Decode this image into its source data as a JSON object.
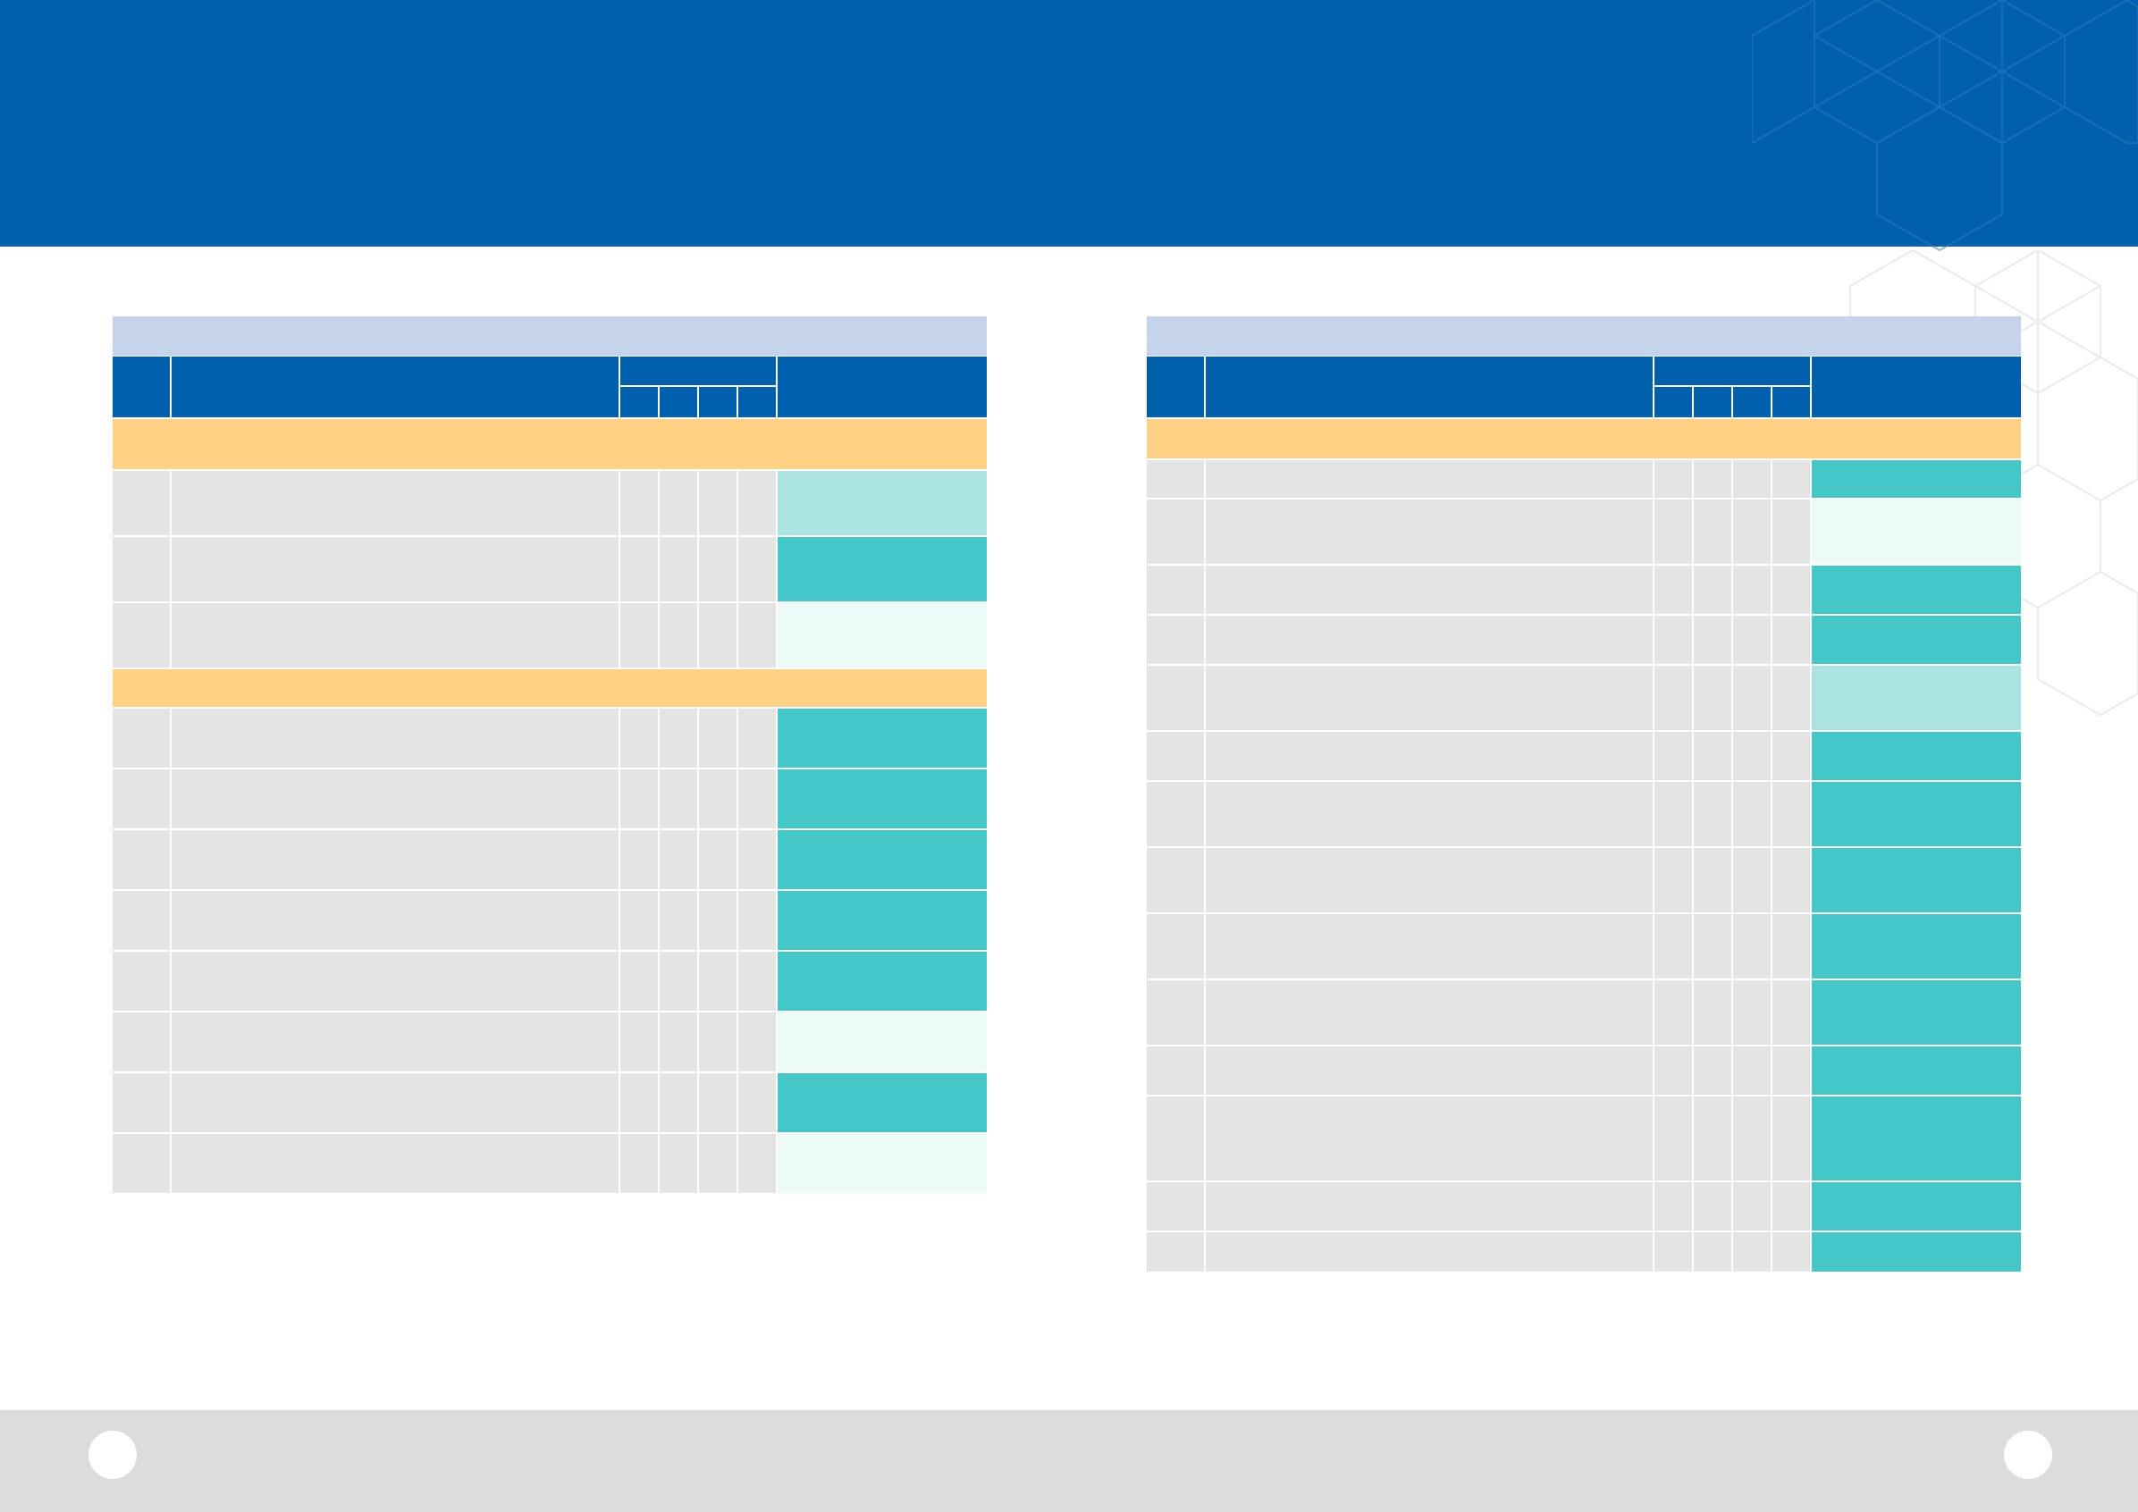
{
  "header": {
    "title": ""
  },
  "footer": {
    "page_left": "",
    "page_right": ""
  },
  "colors": {
    "header_bg": "#0060ae",
    "panel_title_bg": "#c5d4ea",
    "section_bg": "#ffd184",
    "row_bg": "#e4e4e4",
    "status_high": "#45c6c7",
    "status_medium": "#abe3e1",
    "status_low": "#ecfbf8",
    "footer_bg": "#dcdcdc"
  },
  "left_table": {
    "title": "",
    "columns": {
      "no": "",
      "name": "",
      "group": "",
      "sub": [
        "",
        "",
        "",
        ""
      ],
      "status": ""
    },
    "sections": [
      {
        "label": "",
        "rows": [
          {
            "no": "",
            "name": "",
            "c": [
              "",
              "",
              "",
              ""
            ],
            "status": "",
            "level": "medium"
          },
          {
            "no": "",
            "name": "",
            "c": [
              "",
              "",
              "",
              ""
            ],
            "status": "",
            "level": "high"
          },
          {
            "no": "",
            "name": "",
            "c": [
              "",
              "",
              "",
              ""
            ],
            "status": "",
            "level": "low"
          }
        ]
      },
      {
        "label": "",
        "rows": [
          {
            "no": "",
            "name": "",
            "c": [
              "",
              "",
              "",
              ""
            ],
            "status": "",
            "level": "high"
          },
          {
            "no": "",
            "name": "",
            "c": [
              "",
              "",
              "",
              ""
            ],
            "status": "",
            "level": "high"
          },
          {
            "no": "",
            "name": "",
            "c": [
              "",
              "",
              "",
              ""
            ],
            "status": "",
            "level": "high"
          },
          {
            "no": "",
            "name": "",
            "c": [
              "",
              "",
              "",
              ""
            ],
            "status": "",
            "level": "high"
          },
          {
            "no": "",
            "name": "",
            "c": [
              "",
              "",
              "",
              ""
            ],
            "status": "",
            "level": "high"
          },
          {
            "no": "",
            "name": "",
            "c": [
              "",
              "",
              "",
              ""
            ],
            "status": "",
            "level": "low"
          },
          {
            "no": "",
            "name": "",
            "c": [
              "",
              "",
              "",
              ""
            ],
            "status": "",
            "level": "high"
          },
          {
            "no": "",
            "name": "",
            "c": [
              "",
              "",
              "",
              ""
            ],
            "status": "",
            "level": "low"
          }
        ]
      }
    ]
  },
  "right_table": {
    "title": "",
    "columns": {
      "no": "",
      "name": "",
      "group": "",
      "sub": [
        "",
        "",
        "",
        ""
      ],
      "status": ""
    },
    "sections": [
      {
        "label": "",
        "rows": [
          {
            "no": "",
            "name": "",
            "c": [
              "",
              "",
              "",
              ""
            ],
            "status": "",
            "level": "high"
          },
          {
            "no": "",
            "name": "",
            "c": [
              "",
              "",
              "",
              ""
            ],
            "status": "",
            "level": "low"
          },
          {
            "no": "",
            "name": "",
            "c": [
              "",
              "",
              "",
              ""
            ],
            "status": "",
            "level": "high"
          },
          {
            "no": "",
            "name": "",
            "c": [
              "",
              "",
              "",
              ""
            ],
            "status": "",
            "level": "high"
          },
          {
            "no": "",
            "name": "",
            "c": [
              "",
              "",
              "",
              ""
            ],
            "status": "",
            "level": "medium"
          },
          {
            "no": "",
            "name": "",
            "c": [
              "",
              "",
              "",
              ""
            ],
            "status": "",
            "level": "high"
          },
          {
            "no": "",
            "name": "",
            "c": [
              "",
              "",
              "",
              ""
            ],
            "status": "",
            "level": "high"
          },
          {
            "no": "",
            "name": "",
            "c": [
              "",
              "",
              "",
              ""
            ],
            "status": "",
            "level": "high"
          },
          {
            "no": "",
            "name": "",
            "c": [
              "",
              "",
              "",
              ""
            ],
            "status": "",
            "level": "high"
          },
          {
            "no": "",
            "name": "",
            "c": [
              "",
              "",
              "",
              ""
            ],
            "status": "",
            "level": "high"
          },
          {
            "no": "",
            "name": "",
            "c": [
              "",
              "",
              "",
              ""
            ],
            "status": "",
            "level": "high"
          },
          {
            "no": "",
            "name": "",
            "c": [
              "",
              "",
              "",
              ""
            ],
            "status": "",
            "level": "high"
          },
          {
            "no": "",
            "name": "",
            "c": [
              "",
              "",
              "",
              ""
            ],
            "status": "",
            "level": "high"
          },
          {
            "no": "",
            "name": "",
            "c": [
              "",
              "",
              "",
              ""
            ],
            "status": "",
            "level": "high"
          }
        ]
      }
    ]
  }
}
